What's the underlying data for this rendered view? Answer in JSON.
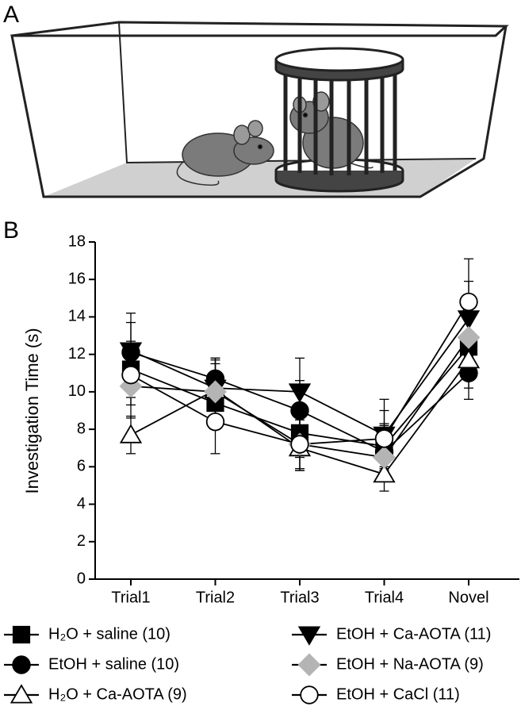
{
  "panel_a": {
    "label": "A"
  },
  "chart_data": {
    "type": "line",
    "panel_label": "B",
    "y_label": "Investigation Time (s)",
    "categories": [
      "Trial1",
      "Trial2",
      "Trial3",
      "Trial4",
      "Novel"
    ],
    "ylim": [
      0,
      18
    ],
    "yticks": [
      0,
      2,
      4,
      6,
      8,
      10,
      12,
      14,
      16,
      18
    ],
    "series": [
      {
        "name": "H₂O + saline (10)",
        "marker": "square",
        "fill": "#000000",
        "color": "#000000",
        "values": [
          11.2,
          9.4,
          7.8,
          7.1,
          12.4
        ],
        "errors": [
          1.5,
          1.4,
          1.3,
          1.2,
          1.6
        ]
      },
      {
        "name": "EtOH + saline (10)",
        "marker": "circle",
        "fill": "#000000",
        "color": "#000000",
        "values": [
          12.1,
          10.7,
          9.0,
          6.8,
          11.0
        ],
        "errors": [
          1.6,
          1.1,
          1.6,
          1.4,
          1.4
        ]
      },
      {
        "name": "H₂O + Ca-AOTA (9)",
        "marker": "triangle",
        "fill": "#ffffff",
        "color": "#000000",
        "values": [
          7.7,
          10.1,
          7.0,
          5.6,
          11.7
        ],
        "errors": [
          1.0,
          1.6,
          1.2,
          0.9,
          1.5
        ]
      },
      {
        "name": "EtOH + Ca-AOTA (11)",
        "marker": "triangle-down",
        "fill": "#000000",
        "color": "#000000",
        "values": [
          12.2,
          10.2,
          10.0,
          7.7,
          13.9
        ],
        "errors": [
          2.0,
          1.6,
          1.8,
          1.9,
          2.0
        ]
      },
      {
        "name": "EtOH + Na-AOTA (9)",
        "marker": "diamond",
        "fill": "#b4b4b4",
        "color": "#000000",
        "values": [
          10.3,
          10.0,
          7.2,
          6.5,
          12.9
        ],
        "errors": [
          1.7,
          1.5,
          1.3,
          1.3,
          1.9
        ]
      },
      {
        "name": "EtOH + CaCl (11)",
        "marker": "circle",
        "fill": "#ffffff",
        "color": "#000000",
        "values": [
          10.9,
          8.4,
          7.2,
          7.5,
          14.8
        ],
        "errors": [
          1.6,
          1.7,
          1.4,
          1.5,
          2.3
        ]
      }
    ]
  }
}
